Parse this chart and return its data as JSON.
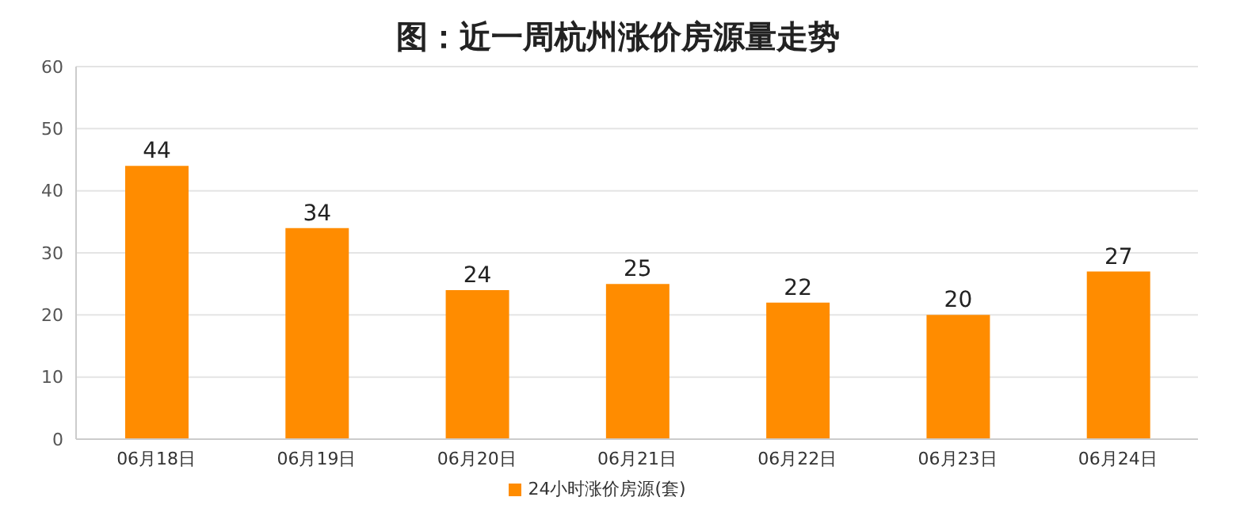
{
  "chart_data": {
    "type": "bar",
    "title": "图：近一周杭州涨价房源量走势",
    "categories": [
      "06月18日",
      "06月19日",
      "06月20日",
      "06月21日",
      "06月22日",
      "06月23日",
      "06月24日"
    ],
    "series": [
      {
        "name": "24小时涨价房源(套)",
        "color": "#ff8c00",
        "values": [
          44,
          34,
          24,
          25,
          22,
          20,
          27
        ]
      }
    ],
    "ylim": [
      0,
      60
    ],
    "yticks": [
      0,
      10,
      20,
      30,
      40,
      50,
      60
    ],
    "grid": "y",
    "legend": "bottom",
    "data_labels": true
  }
}
